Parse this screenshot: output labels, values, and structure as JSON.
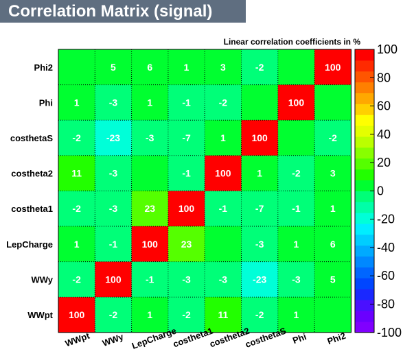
{
  "title": "Correlation Matrix (signal)",
  "chart_data": {
    "type": "heatmap",
    "title": "Correlation Matrix (signal)",
    "subtitle": "Linear correlation coefficients in %",
    "variables": [
      "WWpt",
      "WWy",
      "LepCharge",
      "costheta1",
      "costheta2",
      "costhetaS",
      "Phi",
      "Phi2"
    ],
    "rows_top_to_bottom": [
      "Phi2",
      "Phi",
      "costhetaS",
      "costheta2",
      "costheta1",
      "LepCharge",
      "WWy",
      "WWpt"
    ],
    "columns_left_to_right": [
      "WWpt",
      "WWy",
      "LepCharge",
      "costheta1",
      "costheta2",
      "costhetaS",
      "Phi",
      "Phi2"
    ],
    "values": [
      [
        0,
        5,
        6,
        1,
        3,
        -2,
        0,
        100
      ],
      [
        1,
        -3,
        1,
        -1,
        -2,
        0,
        100,
        0
      ],
      [
        -2,
        -23,
        -3,
        -7,
        1,
        100,
        0,
        -2
      ],
      [
        11,
        -3,
        0,
        -1,
        100,
        1,
        -2,
        3
      ],
      [
        -2,
        -3,
        23,
        100,
        -1,
        -7,
        -1,
        1
      ],
      [
        1,
        -1,
        100,
        23,
        0,
        -3,
        1,
        6
      ],
      [
        -2,
        100,
        -1,
        -3,
        -3,
        -23,
        -3,
        5
      ],
      [
        100,
        -2,
        1,
        -2,
        11,
        -2,
        1,
        0
      ]
    ],
    "labels": [
      [
        "",
        "5",
        "6",
        "1",
        "3",
        "-2",
        "",
        "100"
      ],
      [
        "1",
        "-3",
        "1",
        "-1",
        "-2",
        "",
        "100",
        ""
      ],
      [
        "-2",
        "-23",
        "-3",
        "-7",
        "1",
        "100",
        "",
        "-2"
      ],
      [
        "11",
        "-3",
        "",
        "-1",
        "100",
        "1",
        "-2",
        "3"
      ],
      [
        "-2",
        "-3",
        "23",
        "100",
        "-1",
        "-7",
        "-1",
        "1"
      ],
      [
        "1",
        "-1",
        "100",
        "23",
        "",
        "-3",
        "1",
        "6"
      ],
      [
        "-2",
        "100",
        "-1",
        "-3",
        "-3",
        "-23",
        "-3",
        "5"
      ],
      [
        "100",
        "-2",
        "1",
        "-2",
        "11",
        "-2",
        "1",
        ""
      ]
    ],
    "zlim": [
      -100,
      100
    ],
    "color_scale": {
      "ticks": [
        "100",
        "80",
        "60",
        "40",
        "20",
        "0",
        "-20",
        "-40",
        "-60",
        "-80",
        "-100"
      ],
      "colors_bottom_to_top": [
        "#8000ff",
        "#6a00ff",
        "#4a10ff",
        "#1a28ff",
        "#0046ff",
        "#0066ff",
        "#0088ff",
        "#00aaff",
        "#00cdff",
        "#00eeff",
        "#00ffd8",
        "#00ffa8",
        "#00ff78",
        "#00ff30",
        "#22ff00",
        "#55ff00",
        "#88ff00",
        "#bbff00",
        "#e4ff00",
        "#ffff00",
        "#ffd000",
        "#ffa800",
        "#ff8000",
        "#ff5500",
        "#ff2a00",
        "#ff0000"
      ]
    },
    "grid": true
  }
}
